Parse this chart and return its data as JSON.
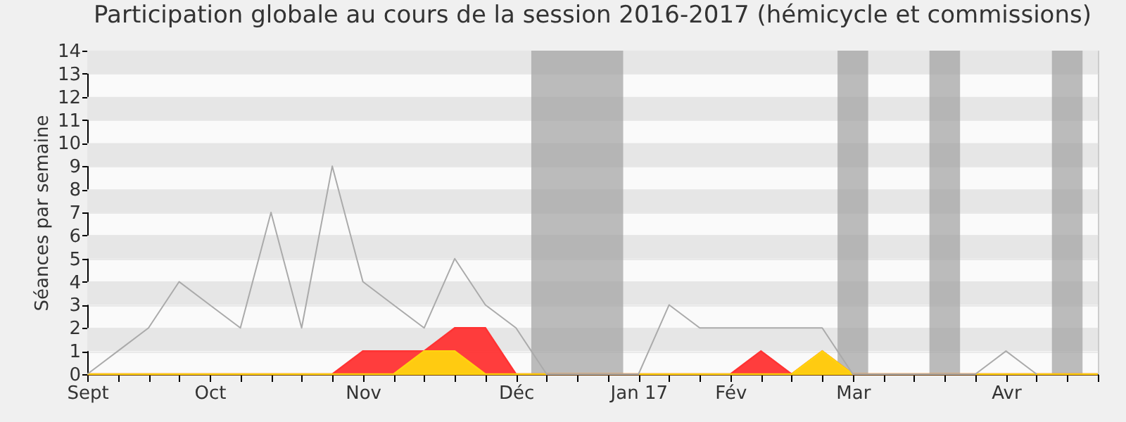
{
  "chart_data": {
    "type": "area",
    "title": "Participation globale au cours de la session 2016-2017 (hémicycle et commissions)",
    "ylabel": "Séances par semaine",
    "x": [
      "2016-09-07",
      "2016-09-14",
      "2016-09-21",
      "2016-09-28",
      "2016-10-05",
      "2016-10-12",
      "2016-10-19",
      "2016-10-26",
      "2016-11-02",
      "2016-11-09",
      "2016-11-16",
      "2016-11-23",
      "2016-11-30",
      "2016-12-07",
      "2016-12-14",
      "2016-12-21",
      "2016-12-28",
      "2017-01-04",
      "2017-01-11",
      "2017-01-18",
      "2017-01-25",
      "2017-02-01",
      "2017-02-08",
      "2017-02-15",
      "2017-02-22",
      "2017-03-01",
      "2017-03-08",
      "2017-03-15",
      "2017-03-22",
      "2017-03-29",
      "2017-04-05",
      "2017-04-12",
      "2017-04-19",
      "2017-04-26"
    ],
    "xlim": [
      "2016-09-07",
      "2017-04-26"
    ],
    "xticks": [
      {
        "value": "2016-09-07",
        "label": "Sept"
      },
      {
        "value": "2016-09-14",
        "label": null
      },
      {
        "value": "2016-09-21",
        "label": null
      },
      {
        "value": "2016-09-28",
        "label": null
      },
      {
        "value": "2016-10-05",
        "label": "Oct"
      },
      {
        "value": "2016-10-12",
        "label": null
      },
      {
        "value": "2016-10-19",
        "label": null
      },
      {
        "value": "2016-10-26",
        "label": null
      },
      {
        "value": "2016-11-02",
        "label": null
      },
      {
        "value": "2016-11-09",
        "label": "Nov"
      },
      {
        "value": "2016-11-16",
        "label": null
      },
      {
        "value": "2016-11-23",
        "label": null
      },
      {
        "value": "2016-11-30",
        "label": null
      },
      {
        "value": "2016-12-07",
        "label": null
      },
      {
        "value": "2016-12-14",
        "label": "Déc"
      },
      {
        "value": "2016-12-21",
        "label": null
      },
      {
        "value": "2016-12-28",
        "label": null
      },
      {
        "value": "2017-01-04",
        "label": null
      },
      {
        "value": "2017-01-11",
        "label": "Jan 17"
      },
      {
        "value": "2017-01-18",
        "label": null
      },
      {
        "value": "2017-01-25",
        "label": null
      },
      {
        "value": "2017-02-01",
        "label": "Fév"
      },
      {
        "value": "2017-02-08",
        "label": null
      },
      {
        "value": "2017-02-15",
        "label": null
      },
      {
        "value": "2017-02-22",
        "label": null
      },
      {
        "value": "2017-03-01",
        "label": "Mar"
      },
      {
        "value": "2017-03-08",
        "label": null
      },
      {
        "value": "2017-03-15",
        "label": null
      },
      {
        "value": "2017-03-22",
        "label": null
      },
      {
        "value": "2017-03-29",
        "label": null
      },
      {
        "value": "2017-04-05",
        "label": "Avr"
      },
      {
        "value": "2017-04-12",
        "label": null
      },
      {
        "value": "2017-04-19",
        "label": null
      },
      {
        "value": "2017-04-26",
        "label": null
      }
    ],
    "ylim": [
      0,
      14
    ],
    "yticks": [
      0,
      1,
      2,
      3,
      4,
      5,
      6,
      7,
      8,
      9,
      10,
      11,
      12,
      13,
      14
    ],
    "grid": "y",
    "bands": [
      {
        "axis": "x",
        "from": "2016-12-17T12:00",
        "to": "2017-01-07T12:00",
        "color": "#a0a0a0"
      },
      {
        "axis": "x",
        "from": "2017-02-25T12:00",
        "to": "2017-03-04T12:00",
        "color": "#a0a0a0"
      },
      {
        "axis": "x",
        "from": "2017-03-18T12:00",
        "to": "2017-03-25T12:00",
        "color": "#a0a0a0"
      },
      {
        "axis": "x",
        "from": "2017-04-15T12:00",
        "to": "2017-04-22T12:00",
        "color": "#a0a0a0"
      }
    ],
    "series": [
      {
        "color": "#ff3333",
        "values": [
          0,
          0,
          0,
          0,
          0,
          0,
          0,
          0,
          0,
          1,
          1,
          1,
          2,
          2,
          0,
          0,
          0,
          0,
          0,
          0,
          0,
          0,
          1,
          0,
          1,
          0,
          0,
          0,
          0,
          0,
          0,
          0,
          0,
          0
        ]
      },
      {
        "color": "#ffd30f",
        "values": [
          0,
          0,
          0,
          0,
          0,
          0,
          0,
          0,
          0,
          0,
          0,
          1,
          1,
          0,
          0,
          0,
          0,
          0,
          0,
          0,
          0,
          0,
          0,
          0,
          1,
          0,
          0,
          0,
          0,
          0,
          0,
          0,
          0,
          0
        ]
      },
      {
        "type": "line",
        "color": "#aaaaaa",
        "values": [
          0,
          1,
          2,
          4,
          3,
          2,
          7,
          2,
          9,
          4,
          3,
          2,
          5,
          3,
          2,
          0,
          0,
          0,
          0,
          3,
          2,
          2,
          2,
          2,
          2,
          0,
          0,
          0,
          0,
          0,
          1,
          0,
          null,
          null
        ]
      }
    ]
  }
}
